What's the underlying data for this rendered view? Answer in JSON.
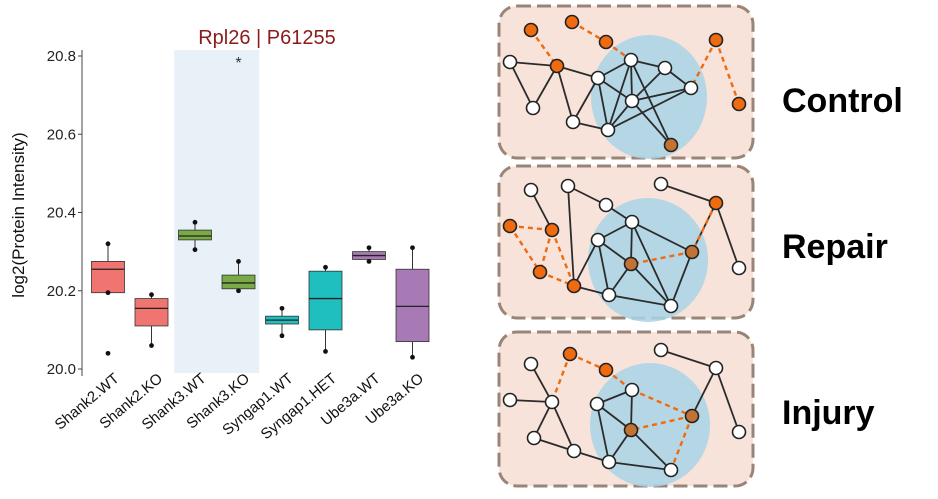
{
  "chart_data": {
    "type": "box",
    "title": "Rpl26 | P61255",
    "ylabel": "log2(Protein Intensity)",
    "xlabel": "",
    "ylim": [
      20.0,
      20.8
    ],
    "yticks": [
      "20.0",
      "20.2",
      "20.4",
      "20.6",
      "20.8"
    ],
    "highlighted_categories": [
      "Shank3.WT",
      "Shank3.KO"
    ],
    "significance_marker": "*",
    "significance_category": "Shank3.KO",
    "categories": [
      "Shank2.WT",
      "Shank2.KO",
      "Shank3.WT",
      "Shank3.KO",
      "Syngap1.WT",
      "Syngap1.HET",
      "Ube3a.WT",
      "Ube3a.KO"
    ],
    "series": [
      {
        "category": "Shank2.WT",
        "color": "#f07470",
        "q1": 20.195,
        "median": 20.255,
        "q3": 20.275,
        "whisker_low": 20.195,
        "whisker_high": 20.32,
        "outliers": [
          20.04
        ]
      },
      {
        "category": "Shank2.KO",
        "color": "#f07470",
        "q1": 20.11,
        "median": 20.155,
        "q3": 20.18,
        "whisker_low": 20.06,
        "whisker_high": 20.19,
        "outliers": []
      },
      {
        "category": "Shank3.WT",
        "color": "#7aaa45",
        "q1": 20.33,
        "median": 20.34,
        "q3": 20.355,
        "whisker_low": 20.305,
        "whisker_high": 20.375,
        "outliers": []
      },
      {
        "category": "Shank3.KO",
        "color": "#7aaa45",
        "q1": 20.205,
        "median": 20.22,
        "q3": 20.24,
        "whisker_low": 20.2,
        "whisker_high": 20.275,
        "outliers": []
      },
      {
        "category": "Syngap1.WT",
        "color": "#1fbfbf",
        "q1": 20.115,
        "median": 20.125,
        "q3": 20.135,
        "whisker_low": 20.085,
        "whisker_high": 20.155,
        "outliers": []
      },
      {
        "category": "Syngap1.HET",
        "color": "#1fbfbf",
        "q1": 20.1,
        "median": 20.18,
        "q3": 20.25,
        "whisker_low": 20.045,
        "whisker_high": 20.26,
        "outliers": []
      },
      {
        "category": "Ube3a.WT",
        "color": "#a77ab5",
        "q1": 20.28,
        "median": 20.29,
        "q3": 20.3,
        "whisker_low": 20.275,
        "whisker_high": 20.31,
        "outliers": []
      },
      {
        "category": "Ube3a.KO",
        "color": "#a77ab5",
        "q1": 20.07,
        "median": 20.16,
        "q3": 20.255,
        "whisker_low": 20.03,
        "whisker_high": 20.31,
        "outliers": []
      }
    ]
  },
  "network_panels": [
    {
      "label": "Control"
    },
    {
      "label": "Repair"
    },
    {
      "label": "Injury"
    }
  ],
  "colors": {
    "title": "#8b1a1a",
    "highlight_band": "#e8f0f8",
    "panel_bg": "#f7e3da",
    "panel_border": "#9a8478",
    "cluster": "#a9d4e6",
    "orange_node": "#f06a10",
    "edge": "#2b2b2b",
    "orange_edge": "#f06a10",
    "brown_node": "#c27232"
  }
}
